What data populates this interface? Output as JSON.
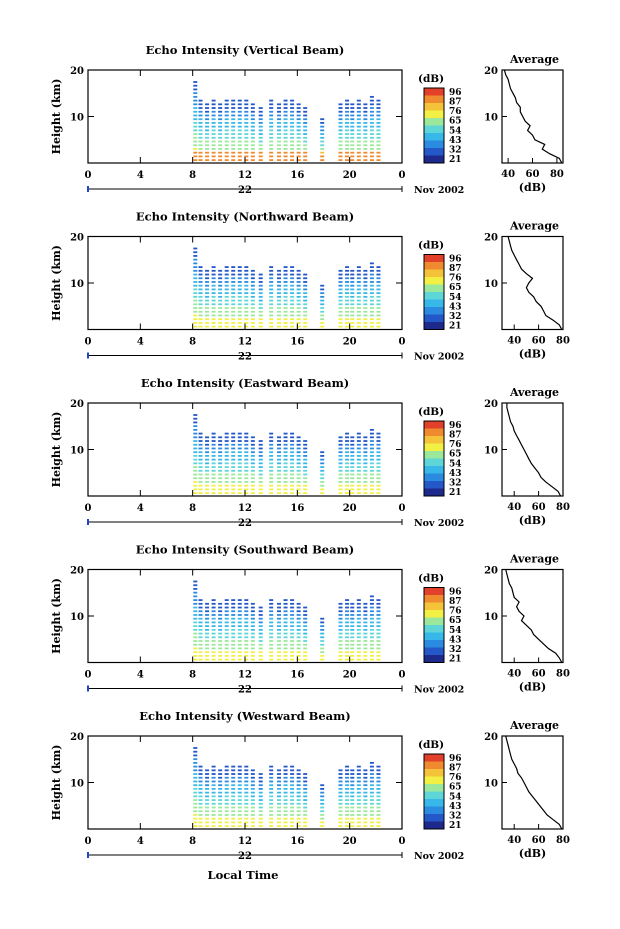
{
  "figure": {
    "x_axis_label": "Local Time",
    "colorbar_unit": "(dB)",
    "colorbar_ticks": [
      "96",
      "87",
      "76",
      "65",
      "54",
      "43",
      "32",
      "21"
    ],
    "height_label": "Height (km)",
    "average_title": "Average",
    "average_xlabel": "(dB)",
    "date_label": "Nov 2002",
    "colormap": [
      "#1d2a8c",
      "#2457c8",
      "#2a8be0",
      "#37b8e8",
      "#5ed6d8",
      "#9be89c",
      "#f2f044",
      "#f5c33a",
      "#ef8a2e",
      "#e2402a"
    ]
  },
  "chart_data": [
    {
      "type": "heatmap",
      "title": "Echo Intensity (Vertical Beam)",
      "ylabel": "Height (km)",
      "x_ticks": [
        "0",
        "4",
        "8",
        "12",
        "16",
        "20",
        "0"
      ],
      "y_ticks": [
        "20",
        "10"
      ],
      "xlim": [
        0,
        24
      ],
      "ylim": [
        0,
        20
      ],
      "day_label": "22",
      "colorbar": {
        "ticks": [
          "96",
          "87",
          "76",
          "65",
          "54",
          "43",
          "32",
          "21"
        ],
        "range": [
          21,
          96
        ]
      },
      "profile": {
        "title": "Average",
        "xlabel": "(dB)",
        "x_ticks": [
          "40",
          "60",
          "80"
        ],
        "y_ticks": [
          "20",
          "10"
        ],
        "xlim": [
          35,
          85
        ],
        "x": [
          84,
          82,
          74,
          68,
          70,
          62,
          60,
          56,
          58,
          54,
          52,
          50,
          50,
          47,
          46,
          44,
          42,
          41,
          40,
          38,
          37
        ],
        "y": [
          0,
          1,
          2,
          3,
          4,
          5,
          6,
          7,
          8,
          9,
          10,
          11,
          12,
          13,
          14,
          15,
          16,
          17,
          18,
          19,
          20
        ]
      }
    },
    {
      "type": "heatmap",
      "title": "Echo Intensity (Northward Beam)",
      "ylabel": "Height (km)",
      "x_ticks": [
        "0",
        "4",
        "8",
        "12",
        "16",
        "20",
        "0"
      ],
      "y_ticks": [
        "20",
        "10"
      ],
      "xlim": [
        0,
        24
      ],
      "ylim": [
        0,
        20
      ],
      "day_label": "22",
      "colorbar": {
        "ticks": [
          "96",
          "87",
          "76",
          "65",
          "54",
          "43",
          "32",
          "21"
        ],
        "range": [
          21,
          96
        ]
      },
      "profile": {
        "title": "Average",
        "xlabel": "(dB)",
        "x_ticks": [
          "40",
          "60",
          "80"
        ],
        "y_ticks": [
          "20",
          "10"
        ],
        "xlim": [
          30,
          80
        ],
        "x": [
          79,
          77,
          72,
          66,
          64,
          62,
          58,
          56,
          52,
          50,
          52,
          55,
          50,
          46,
          44,
          42,
          40,
          38,
          37,
          36,
          35
        ],
        "y": [
          0,
          1,
          2,
          3,
          4,
          5,
          6,
          7,
          8,
          9,
          10,
          11,
          12,
          13,
          14,
          15,
          16,
          17,
          18,
          19,
          20
        ]
      }
    },
    {
      "type": "heatmap",
      "title": "Echo Intensity (Eastward Beam)",
      "ylabel": "Height (km)",
      "x_ticks": [
        "0",
        "4",
        "8",
        "12",
        "16",
        "20",
        "0"
      ],
      "y_ticks": [
        "20",
        "10"
      ],
      "xlim": [
        0,
        24
      ],
      "ylim": [
        0,
        20
      ],
      "day_label": "22",
      "colorbar": {
        "ticks": [
          "96",
          "87",
          "76",
          "65",
          "54",
          "43",
          "32",
          "21"
        ],
        "range": [
          21,
          96
        ]
      },
      "profile": {
        "title": "Average",
        "xlabel": "(dB)",
        "x_ticks": [
          "40",
          "60",
          "80"
        ],
        "y_ticks": [
          "20",
          "10"
        ],
        "xlim": [
          30,
          80
        ],
        "x": [
          78,
          76,
          71,
          66,
          62,
          60,
          57,
          54,
          52,
          50,
          48,
          46,
          44,
          42,
          40,
          39,
          37,
          36,
          35,
          34,
          34
        ],
        "y": [
          0,
          1,
          2,
          3,
          4,
          5,
          6,
          7,
          8,
          9,
          10,
          11,
          12,
          13,
          14,
          15,
          16,
          17,
          18,
          19,
          20
        ]
      }
    },
    {
      "type": "heatmap",
      "title": "Echo Intensity (Southward Beam)",
      "ylabel": "Height (km)",
      "x_ticks": [
        "0",
        "4",
        "8",
        "12",
        "16",
        "20",
        "0"
      ],
      "y_ticks": [
        "20",
        "10"
      ],
      "xlim": [
        0,
        24
      ],
      "ylim": [
        0,
        20
      ],
      "day_label": "22",
      "colorbar": {
        "ticks": [
          "96",
          "87",
          "76",
          "65",
          "54",
          "43",
          "32",
          "21"
        ],
        "range": [
          21,
          96
        ]
      },
      "profile": {
        "title": "Average",
        "xlabel": "(dB)",
        "x_ticks": [
          "40",
          "60",
          "80"
        ],
        "y_ticks": [
          "20",
          "10"
        ],
        "xlim": [
          30,
          80
        ],
        "x": [
          79,
          77,
          74,
          68,
          64,
          60,
          56,
          54,
          50,
          46,
          48,
          44,
          42,
          44,
          40,
          39,
          38,
          36,
          35,
          34,
          33
        ],
        "y": [
          0,
          1,
          2,
          3,
          4,
          5,
          6,
          7,
          8,
          9,
          10,
          11,
          12,
          13,
          14,
          15,
          16,
          17,
          18,
          19,
          20
        ]
      }
    },
    {
      "type": "heatmap",
      "title": "Echo Intensity (Westward Beam)",
      "ylabel": "Height (km)",
      "x_ticks": [
        "0",
        "4",
        "8",
        "12",
        "16",
        "20",
        "0"
      ],
      "y_ticks": [
        "20",
        "10"
      ],
      "xlim": [
        0,
        24
      ],
      "ylim": [
        0,
        20
      ],
      "day_label": "22",
      "colorbar": {
        "ticks": [
          "96",
          "87",
          "76",
          "65",
          "54",
          "43",
          "32",
          "21"
        ],
        "range": [
          21,
          96
        ]
      },
      "profile": {
        "title": "Average",
        "xlabel": "(dB)",
        "x_ticks": [
          "40",
          "60",
          "80"
        ],
        "y_ticks": [
          "20",
          "10"
        ],
        "xlim": [
          30,
          80
        ],
        "x": [
          79,
          77,
          72,
          67,
          64,
          61,
          58,
          55,
          52,
          50,
          48,
          46,
          43,
          42,
          40,
          38,
          37,
          36,
          35,
          34,
          33
        ],
        "y": [
          0,
          1,
          2,
          3,
          4,
          5,
          6,
          7,
          8,
          9,
          10,
          11,
          12,
          13,
          14,
          15,
          16,
          17,
          18,
          19,
          20
        ]
      }
    }
  ]
}
